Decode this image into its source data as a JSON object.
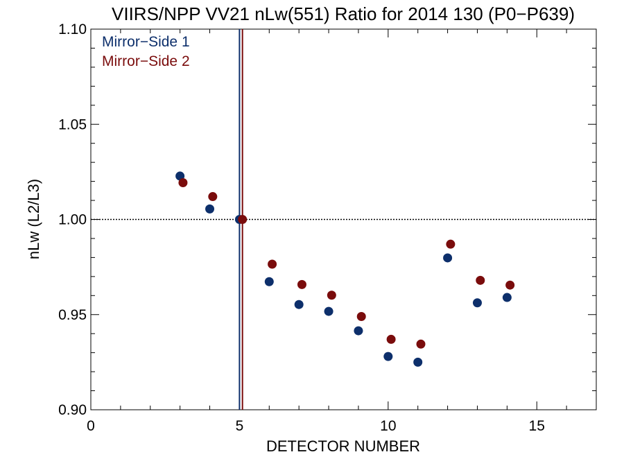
{
  "chart_data": {
    "type": "scatter",
    "title": "VIIRS/NPP VV21 nLw(551) Ratio for 2014 130 (P0−P639)",
    "xlabel": "DETECTOR NUMBER",
    "ylabel": "nLw (L2/L3)",
    "xlim": [
      0,
      17
    ],
    "ylim": [
      0.9,
      1.1
    ],
    "x_ticks": [
      0,
      5,
      10,
      15
    ],
    "x_tick_labels": [
      "0",
      "5",
      "10",
      "15"
    ],
    "y_ticks": [
      0.9,
      0.95,
      1.0,
      1.05,
      1.1
    ],
    "y_tick_labels": [
      "0.90",
      "0.95",
      "1.00",
      "1.05",
      "1.10"
    ],
    "reference_hline": 1.0,
    "legend_placement": "top-left",
    "series": [
      {
        "name": "Mirror−Side 1",
        "color": "#0d2f6b",
        "vline": 5,
        "x": [
          3,
          4,
          5,
          6,
          7,
          8,
          9,
          10,
          11,
          12,
          13,
          14
        ],
        "y": [
          1.0228,
          1.0055,
          1.0,
          0.9673,
          0.9553,
          0.9517,
          0.9415,
          0.928,
          0.925,
          0.9798,
          0.9562,
          0.959
        ]
      },
      {
        "name": "Mirror−Side 2",
        "color": "#7a0c0c",
        "vline": 5.1,
        "x": [
          3.1,
          4.1,
          5.1,
          6.1,
          7.1,
          8.1,
          9.1,
          10.1,
          11.1,
          12.1,
          13.1,
          14.1
        ],
        "y": [
          1.0193,
          1.012,
          1.0,
          0.9765,
          0.9658,
          0.9602,
          0.949,
          0.937,
          0.9345,
          0.987,
          0.968,
          0.9655
        ]
      }
    ]
  }
}
